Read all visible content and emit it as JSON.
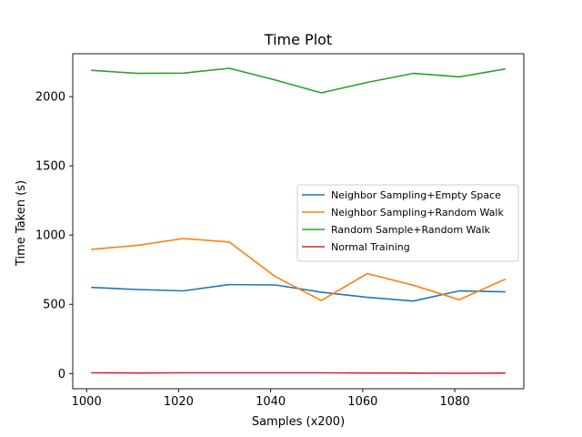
{
  "chart_data": {
    "type": "line",
    "title": "Time Plot",
    "xlabel": "Samples (x200)",
    "ylabel": "Time Taken (s)",
    "xlim": [
      997,
      1095
    ],
    "ylim": [
      -110,
      2310
    ],
    "xticks": [
      1000,
      1020,
      1040,
      1060,
      1080
    ],
    "yticks": [
      0,
      500,
      1000,
      1500,
      2000
    ],
    "grid": false,
    "legend_position": "center-right",
    "x": [
      1001,
      1011,
      1021,
      1031,
      1041,
      1051,
      1061,
      1071,
      1081,
      1091
    ],
    "series": [
      {
        "name": "Neighbor Sampling+Empty Space",
        "color": "#1f77b4",
        "values": [
          622,
          607,
          597,
          642,
          640,
          588,
          550,
          523,
          597,
          590
        ]
      },
      {
        "name": "Neighbor Sampling+Random Walk",
        "color": "#ff7f0e",
        "values": [
          897,
          925,
          975,
          950,
          700,
          527,
          722,
          638,
          533,
          682
        ]
      },
      {
        "name": "Random Sample+Random Walk",
        "color": "#2ca02c",
        "values": [
          2190,
          2168,
          2170,
          2205,
          2120,
          2027,
          2103,
          2168,
          2143,
          2200
        ]
      },
      {
        "name": "Normal Training",
        "color": "#d62728",
        "values": [
          5,
          4,
          5,
          5,
          5,
          5,
          4,
          3,
          2,
          3
        ]
      }
    ]
  }
}
